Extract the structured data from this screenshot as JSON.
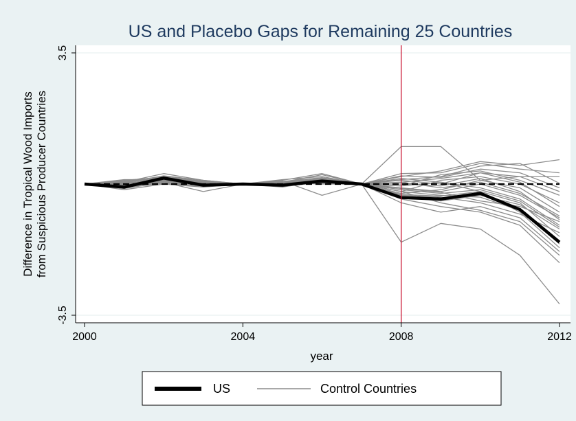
{
  "chart_data": {
    "type": "line",
    "title": "US and Placebo Gaps for Remaining 25 Countries",
    "xlabel": "year",
    "ylabel_line1": "Difference in Tropical Wood Imports",
    "ylabel_line2": "from Suspicious Producer Countries",
    "xlim": [
      2000,
      2012
    ],
    "ylim": [
      -3.5,
      3.5
    ],
    "xticks": [
      2000,
      2004,
      2008,
      2012
    ],
    "yticks": [
      -3.5,
      3.5
    ],
    "ytick_labels": [
      "-3.5",
      "3.5"
    ],
    "reference_hline": 0,
    "treatment_vline": 2008,
    "grid": true,
    "legend_position": "bottom",
    "colors": {
      "us": "#000000",
      "control": "#8c8c8c",
      "vline": "#c8102e",
      "background": "#eaf2f3",
      "plot_bg": "#ffffff",
      "title": "#1e3a5f"
    },
    "legend": [
      {
        "label": "US",
        "style": "thick-black"
      },
      {
        "label": "Control Countries",
        "style": "thin-gray"
      }
    ],
    "x": [
      2000,
      2001,
      2002,
      2003,
      2004,
      2005,
      2006,
      2007,
      2008,
      2009,
      2010,
      2011,
      2012
    ],
    "us_series": [
      0,
      -0.08,
      0.16,
      -0.03,
      0,
      -0.03,
      0.08,
      0,
      -0.36,
      -0.4,
      -0.25,
      -0.68,
      -1.55
    ],
    "control_series": [
      [
        0,
        0.12,
        0.12,
        0.05,
        0,
        0.1,
        0.28,
        0,
        1.0,
        1.0,
        0.1,
        0.2,
        0.2
      ],
      [
        0,
        0.05,
        0.28,
        0.1,
        0,
        0.05,
        0.25,
        0,
        0.2,
        0.35,
        0.6,
        0.5,
        0.65
      ],
      [
        0,
        -0.12,
        0.05,
        -0.2,
        0,
        0.08,
        -0.3,
        0,
        -1.55,
        -1.05,
        -1.2,
        -1.9,
        -3.2
      ],
      [
        0,
        -0.05,
        0.05,
        0.0,
        0,
        0.02,
        0.15,
        0,
        0.28,
        0.3,
        0.55,
        0.4,
        0.3
      ],
      [
        0,
        0.08,
        0.2,
        0.08,
        0,
        0.12,
        0.2,
        0,
        0.12,
        0.2,
        0.48,
        0.55,
        0.02
      ],
      [
        0,
        -0.15,
        0.0,
        -0.08,
        0,
        -0.08,
        0.08,
        0,
        -0.2,
        0.1,
        0.2,
        0.0,
        -0.5
      ],
      [
        0,
        0.0,
        0.12,
        0.05,
        0,
        0.0,
        0.1,
        0,
        -0.1,
        -0.2,
        0.0,
        -0.3,
        -0.9
      ],
      [
        0,
        -0.08,
        0.1,
        0.0,
        0,
        -0.05,
        0.05,
        0,
        -0.5,
        -0.75,
        -0.6,
        -0.9,
        -1.8
      ],
      [
        0,
        0.1,
        0.18,
        0.03,
        0,
        0.06,
        0.14,
        0,
        0.05,
        0.15,
        0.3,
        0.2,
        -0.2
      ],
      [
        0,
        -0.1,
        0.02,
        -0.05,
        0,
        0.03,
        0.0,
        0,
        -0.3,
        -0.35,
        -0.5,
        -0.8,
        -1.3
      ],
      [
        0,
        0.04,
        0.22,
        0.1,
        0,
        0.04,
        0.12,
        0,
        -0.05,
        0.05,
        -0.1,
        -0.4,
        -1.1
      ],
      [
        0,
        -0.03,
        0.08,
        -0.02,
        0,
        0.0,
        0.06,
        0,
        -0.4,
        -0.6,
        -0.75,
        -1.1,
        -2.1
      ],
      [
        0,
        -0.06,
        0.14,
        0.02,
        0,
        0.02,
        0.1,
        0,
        0.1,
        0.0,
        0.3,
        0.05,
        -0.6
      ],
      [
        0,
        0.06,
        0.16,
        0.04,
        0,
        0.04,
        0.1,
        0,
        -0.2,
        -0.3,
        -0.35,
        -0.7,
        -1.6
      ],
      [
        0,
        -0.02,
        0.12,
        -0.04,
        0,
        -0.02,
        0.04,
        0,
        -0.12,
        -0.22,
        -0.45,
        -0.6,
        -1.0
      ],
      [
        0,
        0.02,
        0.1,
        0.0,
        0,
        0.06,
        0.12,
        0,
        -0.25,
        -0.15,
        0.1,
        -0.1,
        -0.75
      ],
      [
        0,
        -0.04,
        0.18,
        0.06,
        0,
        0.0,
        0.08,
        0,
        0.15,
        0.05,
        -0.2,
        -0.5,
        -1.4
      ],
      [
        0,
        0.03,
        0.11,
        -0.03,
        0,
        0.05,
        0.13,
        0,
        -0.05,
        0.25,
        0.35,
        0.1,
        -0.3
      ],
      [
        0,
        -0.07,
        0.09,
        -0.01,
        0,
        -0.04,
        0.07,
        0,
        -0.35,
        -0.45,
        -0.3,
        -0.55,
        -1.2
      ],
      [
        0,
        0.07,
        0.2,
        0.07,
        0,
        0.07,
        0.17,
        0,
        0.05,
        -0.1,
        0.05,
        -0.25,
        -0.85
      ],
      [
        0,
        -0.09,
        0.06,
        -0.06,
        0,
        0.01,
        0.02,
        0,
        -0.2,
        -0.5,
        -0.7,
        -1.0,
        -1.9
      ],
      [
        0,
        0.01,
        0.15,
        0.02,
        0,
        0.03,
        0.09,
        0,
        0.22,
        0.18,
        0.4,
        0.3,
        -0.1
      ],
      [
        0,
        -0.01,
        0.13,
        0.01,
        0,
        0.02,
        0.11,
        0,
        -0.15,
        -0.25,
        -0.15,
        -0.45,
        -1.15
      ],
      [
        0,
        0.04,
        0.17,
        0.03,
        0,
        -0.01,
        0.06,
        0,
        -0.28,
        -0.32,
        -0.2,
        -0.75,
        -1.7
      ],
      [
        0,
        -0.05,
        0.07,
        -0.07,
        0,
        0.05,
        0.14,
        0,
        0.0,
        -0.05,
        0.15,
        -0.2,
        -0.95
      ]
    ]
  }
}
